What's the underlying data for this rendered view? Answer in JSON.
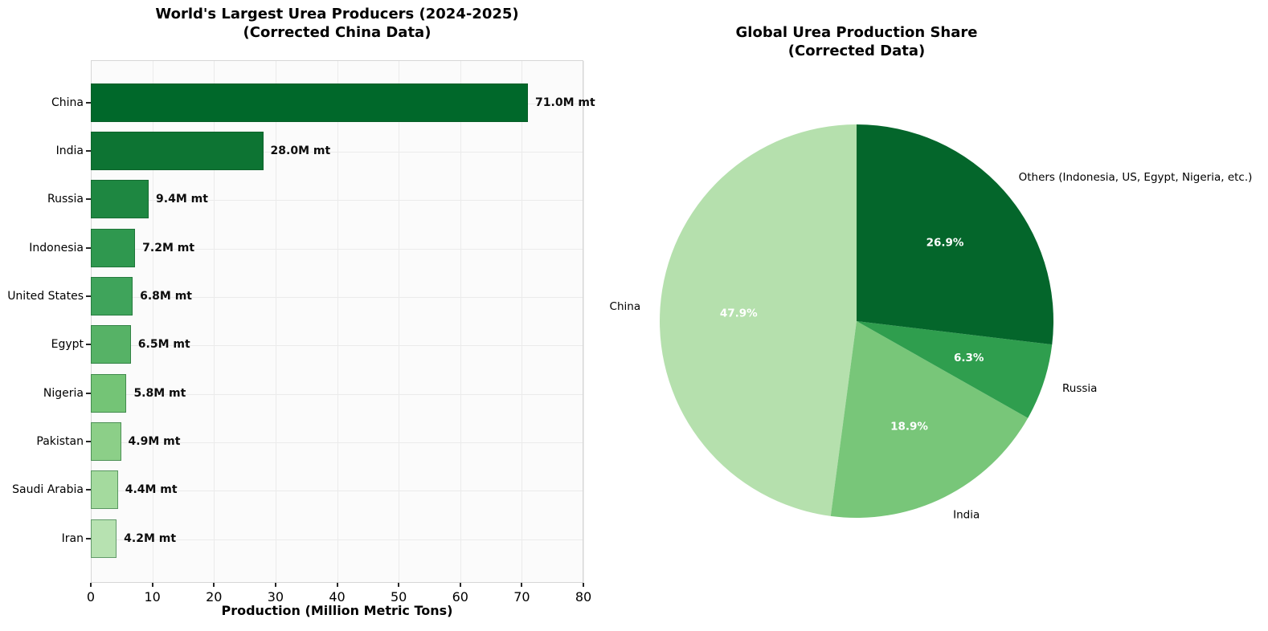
{
  "chart_data": [
    {
      "type": "bar",
      "orientation": "horizontal",
      "title_lines": [
        "World's Largest Urea Producers (2024-2025)",
        "(Corrected China Data)"
      ],
      "xlabel": "Production (Million Metric Tons)",
      "ylabel": "",
      "xlim": [
        0,
        80
      ],
      "xticks": [
        0,
        10,
        20,
        30,
        40,
        50,
        60,
        70,
        80
      ],
      "grid": "both",
      "categories": [
        "China",
        "India",
        "Russia",
        "Indonesia",
        "United States",
        "Egypt",
        "Nigeria",
        "Pakistan",
        "Saudi Arabia",
        "Iran"
      ],
      "values": [
        71.0,
        28.0,
        9.4,
        7.2,
        6.8,
        6.5,
        5.8,
        4.9,
        4.4,
        4.2
      ],
      "value_labels": [
        "71.0M mt",
        "28.0M mt",
        "9.4M mt",
        "7.2M mt",
        "6.8M mt",
        "6.5M mt",
        "5.8M mt",
        "4.9M mt",
        "4.4M mt",
        "4.2M mt"
      ],
      "bar_colors": [
        "#00682a",
        "#0d7433",
        "#1e8741",
        "#2f984f",
        "#3fa45b",
        "#56b266",
        "#74c476",
        "#8ccf88",
        "#a4da9e",
        "#b7e2b1"
      ],
      "grid_color": "#ebebeb",
      "axis_color": "#d6d6d6",
      "tick_color": "#262626"
    },
    {
      "type": "pie",
      "title_lines": [
        "Global Urea Production Share",
        "(Corrected Data)"
      ],
      "start_angle": 90,
      "direction": "counterclockwise",
      "legend_position": "none",
      "slices": [
        {
          "label": "China",
          "pct": 47.9,
          "pct_label": "47.9%",
          "color": "#b5e0ad"
        },
        {
          "label": "India",
          "pct": 18.9,
          "pct_label": "18.9%",
          "color": "#78c679"
        },
        {
          "label": "Russia",
          "pct": 6.3,
          "pct_label": "6.3%",
          "color": "#2f9e4e"
        },
        {
          "label": "Others (Indonesia, US, Egypt, Nigeria, etc.)",
          "pct": 26.9,
          "pct_label": "26.9%",
          "color": "#04662b"
        }
      ],
      "pct_text_color": "#ffffff",
      "label_text_color": "#000000"
    }
  ]
}
